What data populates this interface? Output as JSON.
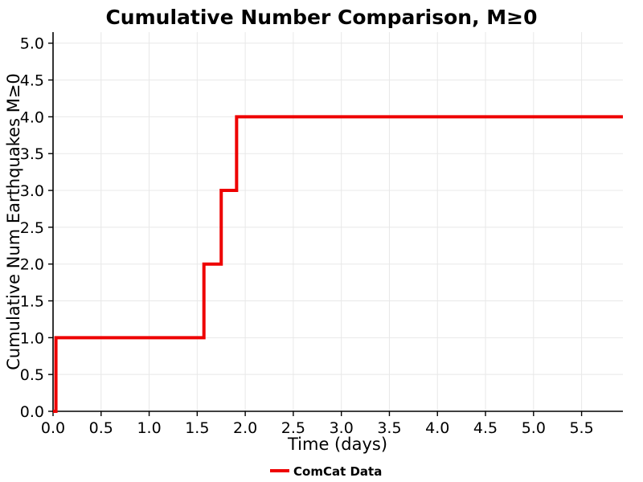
{
  "chart_data": {
    "type": "line",
    "style": "step",
    "title": "Cumulative Number Comparison, M≥0",
    "xlabel": "Time (days)",
    "ylabel": "Cumulative Num Earthquakes M≥0",
    "xlim": [
      0,
      5.93
    ],
    "ylim": [
      0,
      5.15
    ],
    "xticks": [
      0,
      0.5,
      1,
      1.5,
      2,
      2.5,
      3,
      3.5,
      4,
      4.5,
      5,
      5.5
    ],
    "yticks": [
      0,
      0.5,
      1,
      1.5,
      2,
      2.5,
      3,
      3.5,
      4,
      4.5,
      5
    ],
    "grid": true,
    "grid_color": "#e8e8e8",
    "axis_color": "#000000",
    "legend_position": "bottom-center",
    "series": [
      {
        "name": "ComCat Data",
        "color": "#ee0000",
        "line_width": 4,
        "points": [
          [
            0,
            0
          ],
          [
            0.03,
            0
          ],
          [
            0.03,
            1
          ],
          [
            1.57,
            1
          ],
          [
            1.57,
            2
          ],
          [
            1.75,
            2
          ],
          [
            1.75,
            3
          ],
          [
            1.91,
            3
          ],
          [
            1.91,
            4
          ],
          [
            5.93,
            4
          ]
        ]
      }
    ]
  }
}
